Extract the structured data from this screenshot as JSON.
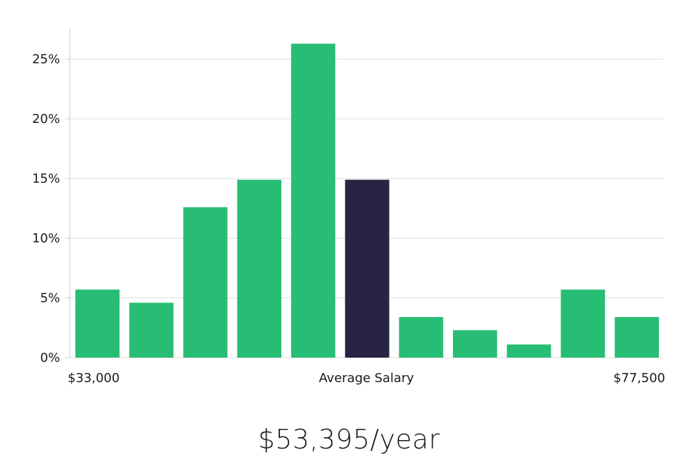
{
  "chart_data": {
    "type": "bar",
    "title": "",
    "xlabel": "Average Salary",
    "ylabel": "",
    "ylim": [
      0,
      27.5
    ],
    "grid": true,
    "yticks": [
      0,
      5,
      10,
      15,
      20,
      25
    ],
    "ytick_suffix": "%",
    "values": [
      5.7,
      4.6,
      12.6,
      14.9,
      26.3,
      14.9,
      3.4,
      2.3,
      1.1,
      5.7,
      3.4
    ],
    "highlight_index": 5,
    "x_min_label": "$33,000",
    "x_max_label": "$77,500",
    "colors": {
      "bar": "#28bd74",
      "highlight": "#272443",
      "grid": "#dddddd",
      "axis": "#cccccc"
    }
  },
  "summary": {
    "salary": "$53,395/year"
  }
}
